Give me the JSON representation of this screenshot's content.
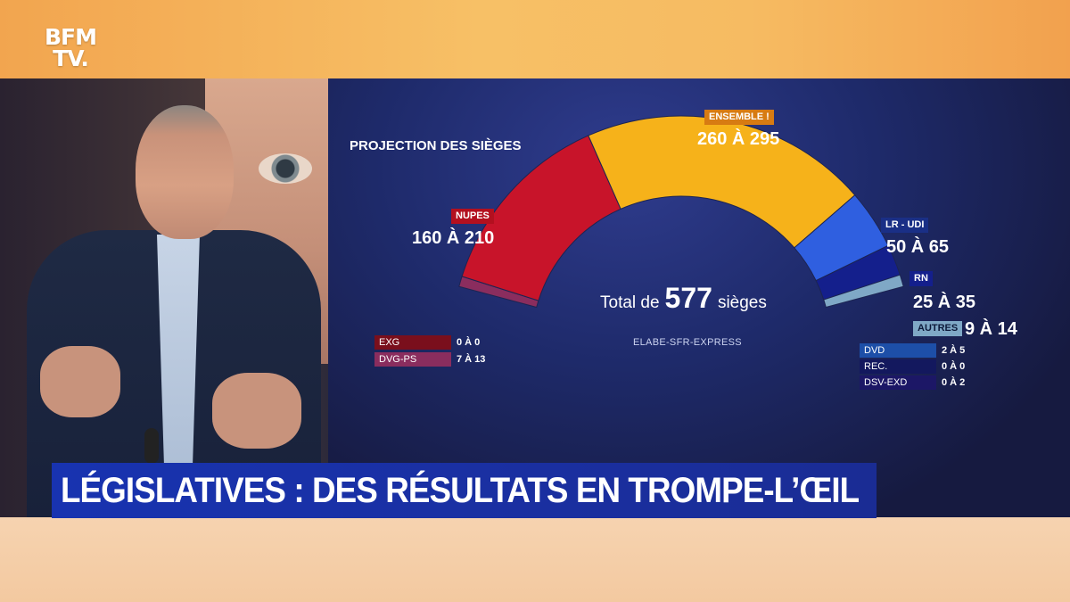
{
  "channel": {
    "logo_line1": "BFM",
    "logo_line2": "TV."
  },
  "headline": "LÉGISLATIVES : DES RÉSULTATS EN TROMPE-L’ŒIL",
  "chart_data": {
    "type": "pie",
    "subtype": "parliament-hemicycle",
    "title": "PROJECTION DES SIÈGES",
    "total_label_prefix": "Total de",
    "total_seats": 577,
    "total_label_suffix": "sièges",
    "source": "ELABE-SFR-EXPRESS",
    "segments": [
      {
        "key": "exg",
        "label": "EXG",
        "range": "0 À 0",
        "low": 0,
        "high": 0,
        "color": "#7a0f1c"
      },
      {
        "key": "dvgps",
        "label": "DVG-PS",
        "range": "7 À 13",
        "low": 7,
        "high": 13,
        "color": "#8a2d5e"
      },
      {
        "key": "nupes",
        "label": "NUPES",
        "range": "160 À 210",
        "low": 160,
        "high": 210,
        "color": "#c8142a"
      },
      {
        "key": "ensemble",
        "label": "ENSEMBLE !",
        "range": "260 À 295",
        "low": 260,
        "high": 295,
        "color": "#f6b21a"
      },
      {
        "key": "lrudi",
        "label": "LR - UDI",
        "range": "50 À 65",
        "low": 50,
        "high": 65,
        "color": "#2f5fe0"
      },
      {
        "key": "rn",
        "label": "RN",
        "range": "25 À 35",
        "low": 25,
        "high": 35,
        "color": "#141f8c"
      },
      {
        "key": "autres",
        "label": "AUTRES",
        "range": "9 À 14",
        "low": 9,
        "high": 14,
        "color": "#7fa8c6"
      },
      {
        "key": "dvd",
        "label": "DVD",
        "range": "2 À 5",
        "low": 2,
        "high": 5,
        "color": "#1d4fa8"
      },
      {
        "key": "rec",
        "label": "REC.",
        "range": "0 À 0",
        "low": 0,
        "high": 0,
        "color": "#13185e"
      },
      {
        "key": "dsvexd",
        "label": "DSV-EXD",
        "range": "0 À 2",
        "low": 0,
        "high": 2,
        "color": "#1c1766"
      }
    ]
  }
}
